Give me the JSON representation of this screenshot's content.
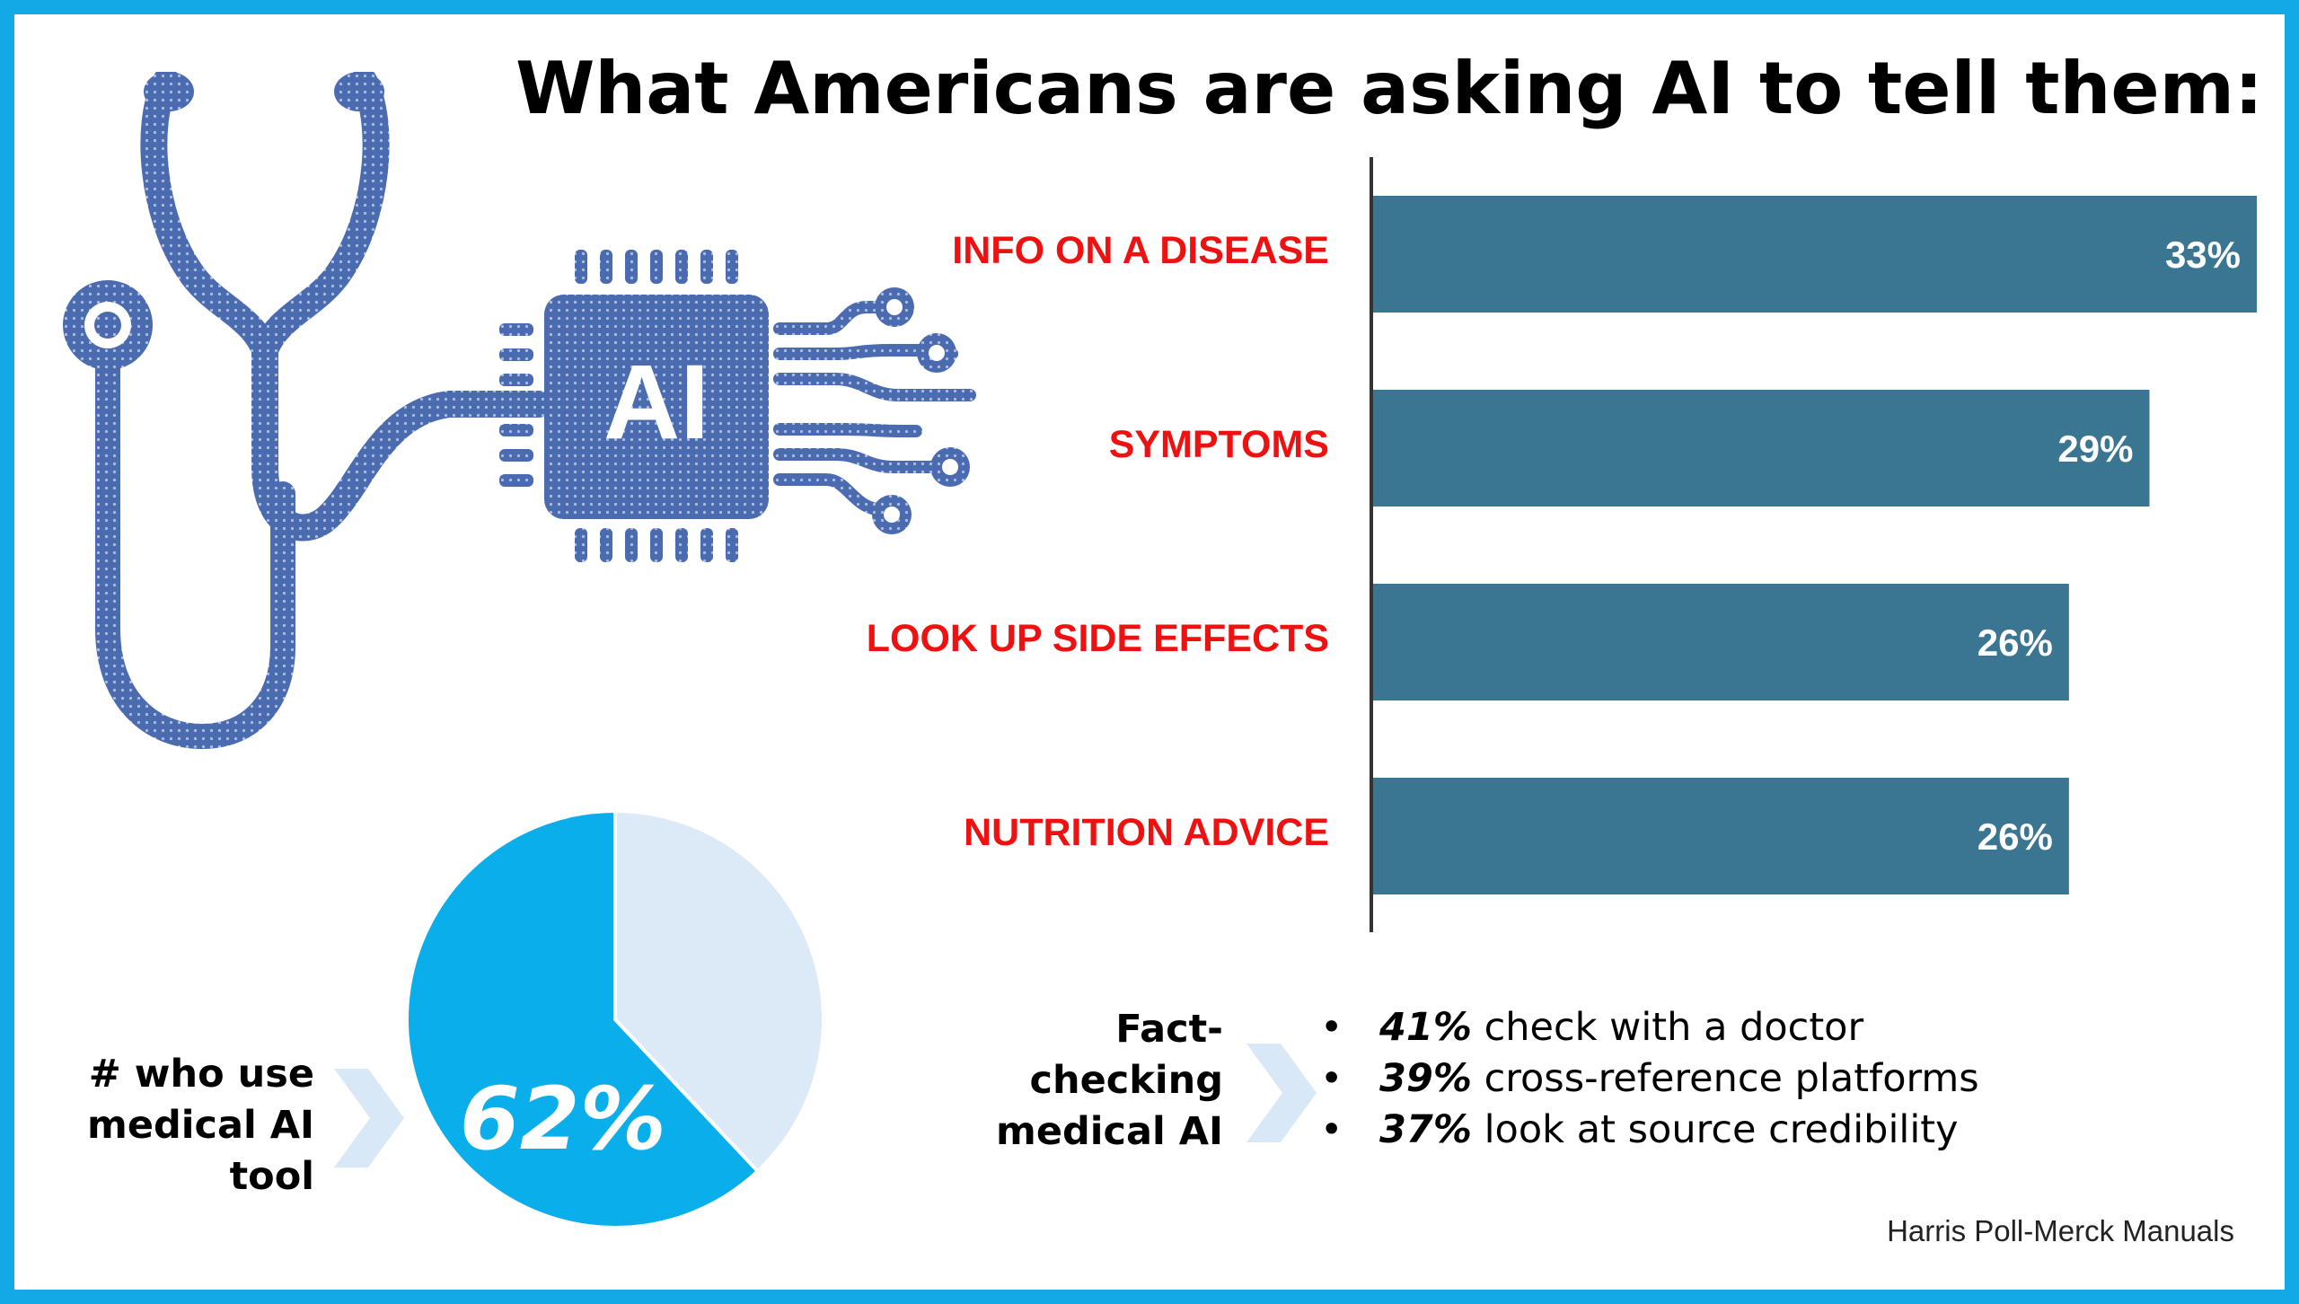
{
  "title": "What Americans are asking AI to tell them:",
  "illustration": {
    "icon": "stethoscope-ai-chip-icon",
    "chip_text": "AI",
    "color": "#4a6bb0"
  },
  "chart_data": [
    {
      "type": "bar",
      "orientation": "horizontal",
      "title": "What Americans are asking AI to tell them:",
      "categories": [
        "INFO ON A DISEASE",
        "SYMPTOMS",
        "LOOK UP SIDE EFFECTS",
        "NUTRITION ADVICE"
      ],
      "values": [
        33,
        29,
        26,
        26
      ],
      "value_labels": [
        "33%",
        "29%",
        "26%",
        "26%"
      ],
      "unit": "%",
      "bar_color": "#3a7592",
      "label_color": "#ee1111",
      "xlim": [
        0,
        33
      ],
      "grid": false
    },
    {
      "type": "pie",
      "label": "# who use medical AI tool",
      "slices": [
        {
          "value": 62,
          "color": "#0aaeea"
        },
        {
          "value": 38,
          "color": "#dce9f6"
        }
      ],
      "value_label": "62%"
    }
  ],
  "pie_label": "# who use medical AI tool",
  "pie_value": "62%",
  "fact_check": {
    "label": "Fact- checking medical AI",
    "items": [
      {
        "pct": "41%",
        "text": "check with a doctor"
      },
      {
        "pct": "39%",
        "text": "cross-reference platforms"
      },
      {
        "pct": "37%",
        "text": "look at source credibility"
      }
    ]
  },
  "source": "Harris Poll-Merck Manuals",
  "colors": {
    "frame": "#13a8e6",
    "chevron": "#d9e8f6"
  }
}
